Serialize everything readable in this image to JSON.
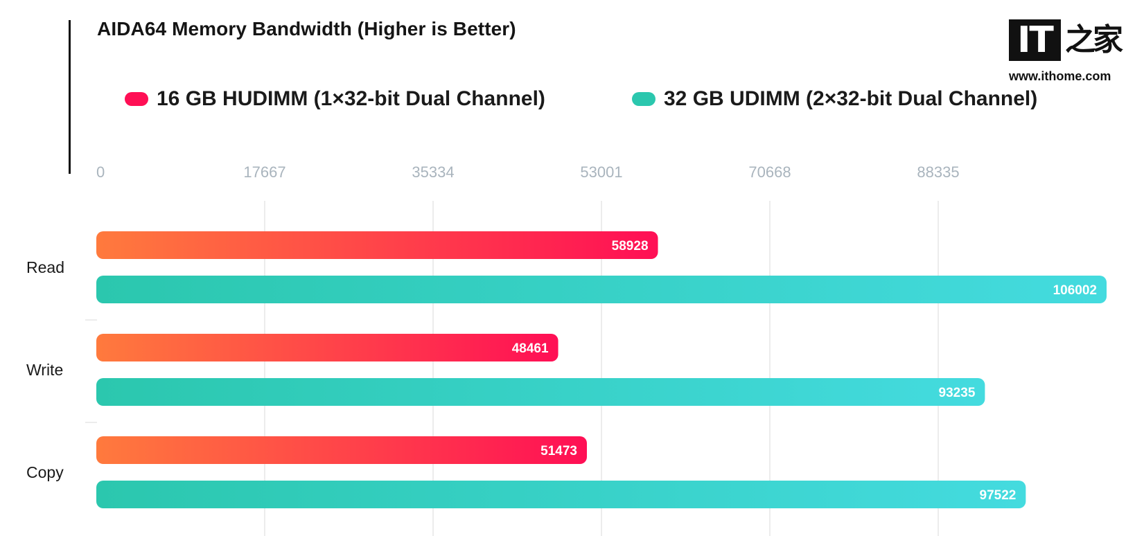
{
  "header": {
    "title": "AIDA64 Memory Bandwidth (Higher is Better)"
  },
  "logo": {
    "mark": "IT",
    "chinese": "之家",
    "url": "www.ithome.com"
  },
  "colors": {
    "series_a_start": "#ff7a3d",
    "series_a_end": "#ff0f55",
    "series_b_start": "#2bc7ae",
    "series_b_end": "#44dbdf",
    "grid": "#ececec",
    "tick": "#a9b4bd"
  },
  "chart_data": {
    "type": "bar",
    "orientation": "horizontal",
    "title": "AIDA64 Memory Bandwidth (Higher is Better)",
    "categories": [
      "Read",
      "Write",
      "Copy"
    ],
    "series": [
      {
        "name": "16 GB HUDIMM (1×32-bit Dual Channel)",
        "values": [
          58928,
          48461,
          51473
        ]
      },
      {
        "name": "32 GB UDIMM (2×32-bit Dual Channel)",
        "values": [
          106002,
          93235,
          97522
        ]
      }
    ],
    "x_ticks": [
      "0",
      "17667",
      "35334",
      "53001",
      "70668",
      "88335"
    ],
    "xlim": [
      0,
      106002
    ],
    "grid": true,
    "legend": "top",
    "xlabel": "",
    "ylabel": ""
  }
}
